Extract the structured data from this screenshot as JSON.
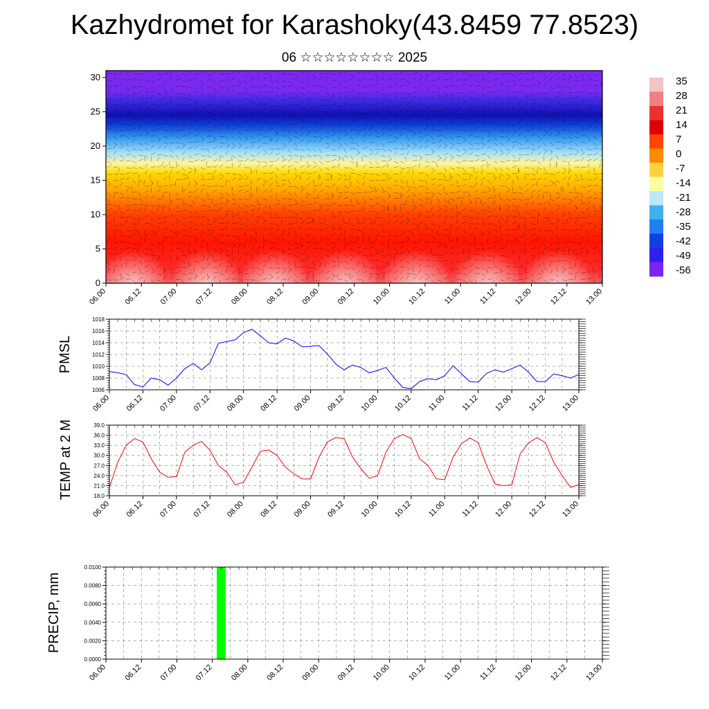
{
  "title": "Kazhydromet for Karashoky(43.8459 77.8523)",
  "subtitle": "06 ☆☆☆☆☆☆☆☆ 2025",
  "time_ticks": [
    "06.00",
    "06.12",
    "07.00",
    "07.12",
    "08.00",
    "08.12",
    "09.00",
    "09.12",
    "10.00",
    "10.12",
    "11.00",
    "11.12",
    "12.00",
    "12.12",
    "13.00"
  ],
  "colors": {
    "pmsl_line": "#0000ff",
    "temp_line": "#ff0000",
    "precip_bar": "#00ff00",
    "grid": "#000000"
  },
  "chart_data": [
    {
      "type": "heatmap",
      "ylim": [
        0,
        31
      ],
      "ytick_labels": [
        "0",
        "5",
        "10",
        "15",
        "20",
        "25",
        "30"
      ],
      "overlay": "wind barbs",
      "colorbar": {
        "labels": [
          "35",
          "28",
          "21",
          "14",
          "7",
          "0",
          "-7",
          "-14",
          "-21",
          "-28",
          "-35",
          "-42",
          "-49",
          "-56"
        ],
        "colors": [
          "#f2c4c4",
          "#f08080",
          "#ee3030",
          "#dd0000",
          "#ff4500",
          "#ff8c00",
          "#ffd040",
          "#ffffa0",
          "#bde8f8",
          "#40b0f0",
          "#2080f0",
          "#1040e0",
          "#3020e8",
          "#7a25f0"
        ]
      }
    },
    {
      "type": "line",
      "ylabel": "PMSL",
      "ylim": [
        1006,
        1018
      ],
      "ytick_labels": [
        "1006",
        "1008",
        "1010",
        "1012",
        "1014",
        "1016",
        "1018"
      ],
      "x_hours": [
        0,
        3,
        6,
        9,
        12,
        15,
        18,
        21,
        24,
        27,
        30,
        33,
        36,
        39,
        42,
        45,
        48,
        51,
        54,
        57,
        60,
        63,
        66,
        69,
        72,
        75,
        78,
        81,
        84,
        87,
        90,
        93,
        96,
        99,
        102,
        105,
        108,
        111,
        114,
        117,
        120,
        123,
        126,
        129,
        132,
        135,
        138,
        141,
        144,
        147,
        150,
        153,
        156,
        159,
        162,
        165,
        168
      ],
      "values": [
        1009.1,
        1008.9,
        1008.6,
        1006.9,
        1006.5,
        1008.0,
        1007.7,
        1006.8,
        1008.0,
        1009.6,
        1010.5,
        1009.4,
        1010.6,
        1013.9,
        1014.2,
        1014.5,
        1015.7,
        1016.3,
        1015.2,
        1014.0,
        1013.8,
        1014.8,
        1014.3,
        1013.3,
        1013.4,
        1013.5,
        1012.1,
        1010.4,
        1009.4,
        1010.2,
        1009.8,
        1008.9,
        1009.3,
        1009.8,
        1008.0,
        1006.4,
        1006.2,
        1007.4,
        1007.9,
        1007.7,
        1008.4,
        1010.1,
        1008.7,
        1007.4,
        1007.3,
        1008.8,
        1009.4,
        1009.0,
        1009.6,
        1010.2,
        1009.0,
        1007.4,
        1007.4,
        1008.7,
        1008.4,
        1008.0,
        1008.6
      ]
    },
    {
      "type": "line",
      "ylabel": "TEMP at 2 M",
      "ylim": [
        18.0,
        39.0
      ],
      "ytick_labels": [
        "18.0",
        "21.0",
        "24.0",
        "27.0",
        "30.0",
        "33.0",
        "36.0",
        "39.0"
      ],
      "x_hours": [
        0,
        3,
        6,
        9,
        12,
        15,
        18,
        21,
        24,
        27,
        30,
        33,
        36,
        39,
        42,
        45,
        48,
        51,
        54,
        57,
        60,
        63,
        66,
        69,
        72,
        75,
        78,
        81,
        84,
        87,
        90,
        93,
        96,
        99,
        102,
        105,
        108,
        111,
        114,
        117,
        120,
        123,
        126,
        129,
        132,
        135,
        138,
        141,
        144,
        147,
        150,
        153,
        156,
        159,
        162,
        165,
        168
      ],
      "values": [
        20.5,
        28.0,
        33.0,
        35.0,
        34.0,
        29.0,
        25.0,
        23.5,
        23.7,
        31.0,
        33.0,
        34.2,
        31.5,
        27.0,
        25.0,
        21.3,
        22.0,
        26.5,
        31.2,
        31.6,
        30.0,
        26.5,
        24.5,
        23.0,
        23.0,
        29.5,
        34.0,
        35.3,
        35.0,
        29.5,
        26.0,
        23.2,
        24.0,
        31.0,
        35.0,
        36.2,
        35.0,
        29.0,
        27.0,
        23.0,
        22.8,
        29.5,
        33.5,
        35.2,
        33.8,
        27.0,
        21.5,
        21.0,
        21.2,
        30.5,
        33.7,
        35.3,
        33.8,
        28.0,
        24.0,
        20.5,
        21.3
      ]
    },
    {
      "type": "bar",
      "ylabel": "PRECIP, mm",
      "ylim": [
        0,
        0.01
      ],
      "ytick_labels": [
        "0.0000",
        "0.0020",
        "0.0040",
        "0.0060",
        "0.0080",
        "0.0100"
      ],
      "bars": [
        {
          "x_hour_start": 37.5,
          "x_hour_end": 40.5,
          "value": 0.01
        }
      ]
    }
  ]
}
